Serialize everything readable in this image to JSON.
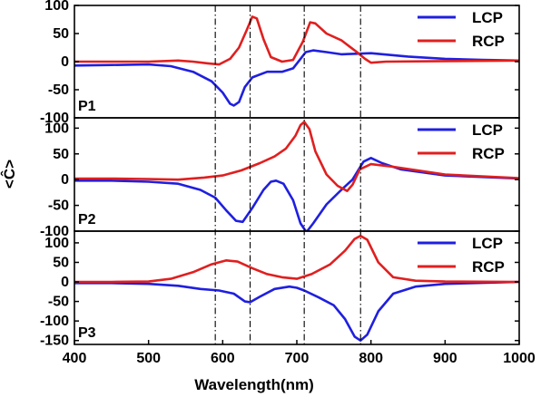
{
  "chart_data": {
    "type": "line",
    "xlabel": "Wavelength(nm)",
    "ylabel": "<Ĉ>",
    "xlim": [
      400,
      1000
    ],
    "x_ticks": [
      "400",
      "500",
      "600",
      "700",
      "800",
      "900",
      "1000"
    ],
    "vertical_reference_lines": [
      590,
      637,
      710,
      786
    ],
    "colors": {
      "LCP": "#1f1fe0",
      "RCP": "#e01f1f"
    },
    "panels": [
      {
        "label": "P1",
        "ylim": [
          -100,
          100
        ],
        "y_ticks": [
          "100",
          "50",
          "0",
          "-50",
          "-100"
        ],
        "legend": [
          "LCP",
          "RCP"
        ],
        "series": [
          {
            "name": "LCP",
            "points": [
              [
                400,
                -7
              ],
              [
                450,
                -6
              ],
              [
                500,
                -5
              ],
              [
                530,
                -8
              ],
              [
                560,
                -18
              ],
              [
                585,
                -35
              ],
              [
                600,
                -55
              ],
              [
                610,
                -75
              ],
              [
                615,
                -78
              ],
              [
                622,
                -72
              ],
              [
                630,
                -45
              ],
              [
                640,
                -28
              ],
              [
                660,
                -18
              ],
              [
                680,
                -18
              ],
              [
                695,
                -12
              ],
              [
                705,
                5
              ],
              [
                712,
                17
              ],
              [
                722,
                20
              ],
              [
                740,
                17
              ],
              [
                760,
                13
              ],
              [
                780,
                14
              ],
              [
                800,
                15
              ],
              [
                850,
                9
              ],
              [
                900,
                5
              ],
              [
                950,
                3
              ],
              [
                1000,
                2
              ]
            ]
          },
          {
            "name": "RCP",
            "points": [
              [
                400,
                0
              ],
              [
                450,
                0
              ],
              [
                500,
                0
              ],
              [
                540,
                2
              ],
              [
                560,
                0
              ],
              [
                580,
                -3
              ],
              [
                595,
                -5
              ],
              [
                610,
                5
              ],
              [
                622,
                25
              ],
              [
                632,
                55
              ],
              [
                640,
                80
              ],
              [
                646,
                77
              ],
              [
                655,
                40
              ],
              [
                665,
                8
              ],
              [
                680,
                0
              ],
              [
                695,
                3
              ],
              [
                708,
                35
              ],
              [
                718,
                70
              ],
              [
                725,
                68
              ],
              [
                740,
                50
              ],
              [
                760,
                38
              ],
              [
                780,
                18
              ],
              [
                792,
                5
              ],
              [
                800,
                -2
              ],
              [
                820,
                0
              ],
              [
                900,
                1
              ],
              [
                1000,
                2
              ]
            ]
          }
        ]
      },
      {
        "label": "P2",
        "ylim": [
          -100,
          120
        ],
        "y_ticks": [
          "100",
          "50",
          "0",
          "-50",
          "-100"
        ],
        "legend": [
          "LCP",
          "RCP"
        ],
        "series": [
          {
            "name": "LCP",
            "points": [
              [
                400,
                -2
              ],
              [
                450,
                -2
              ],
              [
                500,
                -4
              ],
              [
                540,
                -8
              ],
              [
                570,
                -20
              ],
              [
                590,
                -35
              ],
              [
                605,
                -60
              ],
              [
                618,
                -80
              ],
              [
                627,
                -82
              ],
              [
                640,
                -55
              ],
              [
                655,
                -20
              ],
              [
                665,
                -4
              ],
              [
                672,
                -2
              ],
              [
                682,
                -8
              ],
              [
                695,
                -40
              ],
              [
                705,
                -85
              ],
              [
                713,
                -102
              ],
              [
                722,
                -85
              ],
              [
                740,
                -48
              ],
              [
                760,
                -20
              ],
              [
                775,
                0
              ],
              [
                790,
                35
              ],
              [
                800,
                42
              ],
              [
                815,
                32
              ],
              [
                840,
                20
              ],
              [
                900,
                8
              ],
              [
                1000,
                2
              ]
            ]
          },
          {
            "name": "RCP",
            "points": [
              [
                400,
                2
              ],
              [
                450,
                2
              ],
              [
                500,
                1
              ],
              [
                540,
                0
              ],
              [
                575,
                4
              ],
              [
                600,
                8
              ],
              [
                625,
                18
              ],
              [
                650,
                32
              ],
              [
                670,
                45
              ],
              [
                685,
                60
              ],
              [
                698,
                85
              ],
              [
                705,
                106
              ],
              [
                710,
                112
              ],
              [
                717,
                98
              ],
              [
                725,
                55
              ],
              [
                740,
                10
              ],
              [
                755,
                -12
              ],
              [
                768,
                -22
              ],
              [
                775,
                -10
              ],
              [
                785,
                20
              ],
              [
                800,
                30
              ],
              [
                830,
                25
              ],
              [
                900,
                10
              ],
              [
                1000,
                3
              ]
            ]
          }
        ]
      },
      {
        "label": "P3",
        "ylim": [
          -160,
          130
        ],
        "y_ticks": [
          "100",
          "50",
          "0",
          "-50",
          "-100",
          "-150"
        ],
        "legend": [
          "LCP",
          "RCP"
        ],
        "series": [
          {
            "name": "LCP",
            "points": [
              [
                400,
                -3
              ],
              [
                450,
                -3
              ],
              [
                500,
                -5
              ],
              [
                540,
                -10
              ],
              [
                570,
                -18
              ],
              [
                595,
                -22
              ],
              [
                615,
                -30
              ],
              [
                630,
                -50
              ],
              [
                637,
                -52
              ],
              [
                650,
                -38
              ],
              [
                670,
                -18
              ],
              [
                690,
                -12
              ],
              [
                700,
                -15
              ],
              [
                710,
                -22
              ],
              [
                730,
                -40
              ],
              [
                750,
                -60
              ],
              [
                765,
                -95
              ],
              [
                778,
                -140
              ],
              [
                786,
                -150
              ],
              [
                795,
                -135
              ],
              [
                810,
                -75
              ],
              [
                830,
                -30
              ],
              [
                860,
                -12
              ],
              [
                900,
                -5
              ],
              [
                1000,
                0
              ]
            ]
          },
          {
            "name": "RCP",
            "points": [
              [
                400,
                0
              ],
              [
                450,
                0
              ],
              [
                500,
                1
              ],
              [
                530,
                8
              ],
              [
                560,
                25
              ],
              [
                585,
                45
              ],
              [
                605,
                55
              ],
              [
                620,
                52
              ],
              [
                640,
                35
              ],
              [
                660,
                20
              ],
              [
                680,
                12
              ],
              [
                700,
                8
              ],
              [
                720,
                20
              ],
              [
                745,
                45
              ],
              [
                765,
                80
              ],
              [
                778,
                110
              ],
              [
                786,
                118
              ],
              [
                795,
                108
              ],
              [
                810,
                50
              ],
              [
                830,
                12
              ],
              [
                860,
                3
              ],
              [
                900,
                1
              ],
              [
                1000,
                0
              ]
            ]
          }
        ]
      }
    ]
  }
}
